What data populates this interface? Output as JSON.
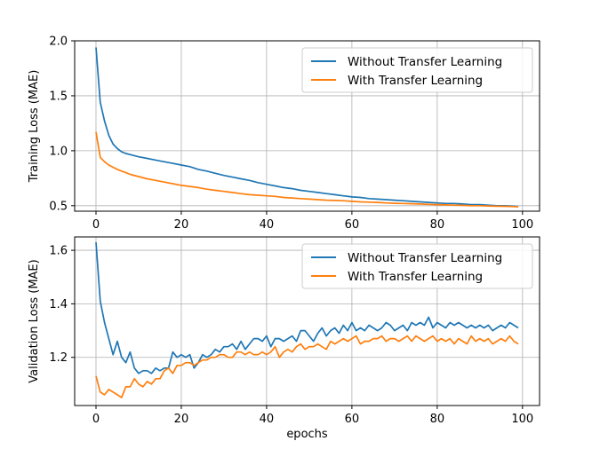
{
  "colors": {
    "without": "#1f77b4",
    "with": "#ff7f0e",
    "grid": "#b0b0b0",
    "axis": "#000000"
  },
  "chart_data": [
    {
      "type": "line",
      "ylabel": "Training Loss (MAE)",
      "xlabel": "",
      "xlim": [
        -5,
        104
      ],
      "ylim": [
        0.45,
        2.0
      ],
      "xticks": [
        0,
        20,
        40,
        60,
        80,
        100
      ],
      "yticks": [
        0.5,
        1.0,
        1.5,
        2.0
      ],
      "ytick_labels": [
        "0.5",
        "1.0",
        "1.5",
        "2.0"
      ],
      "grid": true,
      "legend": "top-right",
      "series": [
        {
          "name": "Without Transfer Learning",
          "color": "#1f77b4",
          "x": [
            0,
            1,
            2,
            3,
            4,
            5,
            6,
            7,
            8,
            10,
            12,
            14,
            16,
            18,
            20,
            22,
            24,
            26,
            28,
            30,
            32,
            34,
            36,
            38,
            40,
            42,
            44,
            46,
            48,
            50,
            52,
            54,
            56,
            58,
            60,
            62,
            64,
            66,
            68,
            70,
            72,
            74,
            76,
            78,
            80,
            82,
            84,
            86,
            88,
            90,
            92,
            94,
            96,
            98,
            99
          ],
          "y": [
            1.94,
            1.44,
            1.27,
            1.14,
            1.06,
            1.02,
            0.99,
            0.975,
            0.965,
            0.945,
            0.93,
            0.915,
            0.9,
            0.885,
            0.87,
            0.855,
            0.83,
            0.815,
            0.795,
            0.775,
            0.76,
            0.745,
            0.73,
            0.71,
            0.695,
            0.68,
            0.665,
            0.655,
            0.64,
            0.63,
            0.62,
            0.61,
            0.6,
            0.59,
            0.58,
            0.575,
            0.565,
            0.56,
            0.555,
            0.55,
            0.545,
            0.54,
            0.535,
            0.53,
            0.525,
            0.52,
            0.52,
            0.515,
            0.51,
            0.51,
            0.505,
            0.5,
            0.5,
            0.495,
            0.49
          ]
        },
        {
          "name": "With Transfer Learning",
          "color": "#ff7f0e",
          "x": [
            0,
            1,
            2,
            3,
            4,
            5,
            6,
            7,
            8,
            10,
            12,
            14,
            16,
            18,
            20,
            22,
            24,
            26,
            28,
            30,
            32,
            34,
            36,
            38,
            40,
            42,
            44,
            46,
            48,
            50,
            52,
            54,
            56,
            58,
            60,
            62,
            64,
            66,
            68,
            70,
            72,
            74,
            76,
            78,
            80,
            82,
            84,
            86,
            88,
            90,
            92,
            94,
            96,
            98,
            99
          ],
          "y": [
            1.17,
            0.94,
            0.9,
            0.87,
            0.85,
            0.83,
            0.815,
            0.8,
            0.785,
            0.765,
            0.745,
            0.73,
            0.715,
            0.7,
            0.685,
            0.675,
            0.665,
            0.65,
            0.64,
            0.63,
            0.62,
            0.61,
            0.6,
            0.595,
            0.59,
            0.585,
            0.575,
            0.57,
            0.565,
            0.56,
            0.555,
            0.55,
            0.548,
            0.545,
            0.54,
            0.535,
            0.532,
            0.53,
            0.525,
            0.522,
            0.52,
            0.518,
            0.515,
            0.512,
            0.51,
            0.508,
            0.505,
            0.503,
            0.5,
            0.5,
            0.498,
            0.495,
            0.494,
            0.492,
            0.49
          ]
        }
      ]
    },
    {
      "type": "line",
      "ylabel": "Validation Loss (MAE)",
      "xlabel": "epochs",
      "xlim": [
        -5,
        104
      ],
      "ylim": [
        1.02,
        1.65
      ],
      "xticks": [
        0,
        20,
        40,
        60,
        80,
        100
      ],
      "yticks": [
        1.2,
        1.4,
        1.6
      ],
      "ytick_labels": [
        "1.2",
        "1.4",
        "1.6"
      ],
      "grid": true,
      "legend": "top-right",
      "series": [
        {
          "name": "Without Transfer Learning",
          "color": "#1f77b4",
          "x": [
            0,
            1,
            2,
            3,
            4,
            5,
            6,
            7,
            8,
            9,
            10,
            11,
            12,
            13,
            14,
            15,
            16,
            17,
            18,
            19,
            20,
            21,
            22,
            23,
            24,
            25,
            26,
            27,
            28,
            29,
            30,
            31,
            32,
            33,
            34,
            35,
            36,
            37,
            38,
            39,
            40,
            41,
            42,
            43,
            44,
            45,
            46,
            47,
            48,
            49,
            50,
            51,
            52,
            53,
            54,
            55,
            56,
            57,
            58,
            59,
            60,
            61,
            62,
            63,
            64,
            65,
            66,
            67,
            68,
            69,
            70,
            71,
            72,
            73,
            74,
            75,
            76,
            77,
            78,
            79,
            80,
            81,
            82,
            83,
            84,
            85,
            86,
            87,
            88,
            89,
            90,
            91,
            92,
            93,
            94,
            95,
            96,
            97,
            98,
            99
          ],
          "y": [
            1.63,
            1.41,
            1.33,
            1.27,
            1.21,
            1.26,
            1.2,
            1.18,
            1.22,
            1.16,
            1.14,
            1.15,
            1.15,
            1.14,
            1.16,
            1.15,
            1.16,
            1.16,
            1.22,
            1.2,
            1.21,
            1.2,
            1.21,
            1.16,
            1.18,
            1.21,
            1.2,
            1.21,
            1.23,
            1.22,
            1.24,
            1.24,
            1.25,
            1.23,
            1.26,
            1.23,
            1.25,
            1.27,
            1.27,
            1.26,
            1.28,
            1.24,
            1.27,
            1.27,
            1.26,
            1.27,
            1.28,
            1.26,
            1.3,
            1.3,
            1.28,
            1.26,
            1.29,
            1.31,
            1.28,
            1.3,
            1.31,
            1.29,
            1.32,
            1.3,
            1.33,
            1.3,
            1.31,
            1.3,
            1.32,
            1.31,
            1.3,
            1.31,
            1.33,
            1.32,
            1.3,
            1.31,
            1.32,
            1.3,
            1.33,
            1.32,
            1.33,
            1.32,
            1.35,
            1.31,
            1.33,
            1.32,
            1.31,
            1.33,
            1.32,
            1.33,
            1.32,
            1.31,
            1.32,
            1.31,
            1.32,
            1.31,
            1.32,
            1.3,
            1.31,
            1.32,
            1.31,
            1.33,
            1.32,
            1.31
          ]
        },
        {
          "name": "With Transfer Learning",
          "color": "#ff7f0e",
          "x": [
            0,
            1,
            2,
            3,
            4,
            5,
            6,
            7,
            8,
            9,
            10,
            11,
            12,
            13,
            14,
            15,
            16,
            17,
            18,
            19,
            20,
            21,
            22,
            23,
            24,
            25,
            26,
            27,
            28,
            29,
            30,
            31,
            32,
            33,
            34,
            35,
            36,
            37,
            38,
            39,
            40,
            41,
            42,
            43,
            44,
            45,
            46,
            47,
            48,
            49,
            50,
            51,
            52,
            53,
            54,
            55,
            56,
            57,
            58,
            59,
            60,
            61,
            62,
            63,
            64,
            65,
            66,
            67,
            68,
            69,
            70,
            71,
            72,
            73,
            74,
            75,
            76,
            77,
            78,
            79,
            80,
            81,
            82,
            83,
            84,
            85,
            86,
            87,
            88,
            89,
            90,
            91,
            92,
            93,
            94,
            95,
            96,
            97,
            98,
            99
          ],
          "y": [
            1.13,
            1.07,
            1.06,
            1.08,
            1.07,
            1.06,
            1.05,
            1.09,
            1.09,
            1.12,
            1.1,
            1.09,
            1.11,
            1.1,
            1.12,
            1.12,
            1.15,
            1.16,
            1.14,
            1.17,
            1.17,
            1.18,
            1.18,
            1.17,
            1.18,
            1.19,
            1.19,
            1.2,
            1.2,
            1.21,
            1.21,
            1.2,
            1.2,
            1.22,
            1.22,
            1.21,
            1.22,
            1.21,
            1.21,
            1.22,
            1.21,
            1.22,
            1.24,
            1.2,
            1.22,
            1.23,
            1.22,
            1.24,
            1.25,
            1.23,
            1.24,
            1.24,
            1.25,
            1.24,
            1.23,
            1.26,
            1.25,
            1.26,
            1.27,
            1.26,
            1.27,
            1.28,
            1.25,
            1.26,
            1.26,
            1.27,
            1.27,
            1.28,
            1.26,
            1.27,
            1.27,
            1.26,
            1.27,
            1.28,
            1.26,
            1.28,
            1.27,
            1.26,
            1.27,
            1.28,
            1.26,
            1.27,
            1.26,
            1.27,
            1.25,
            1.27,
            1.26,
            1.25,
            1.28,
            1.26,
            1.27,
            1.26,
            1.27,
            1.25,
            1.26,
            1.27,
            1.26,
            1.28,
            1.26,
            1.25
          ]
        }
      ]
    }
  ]
}
